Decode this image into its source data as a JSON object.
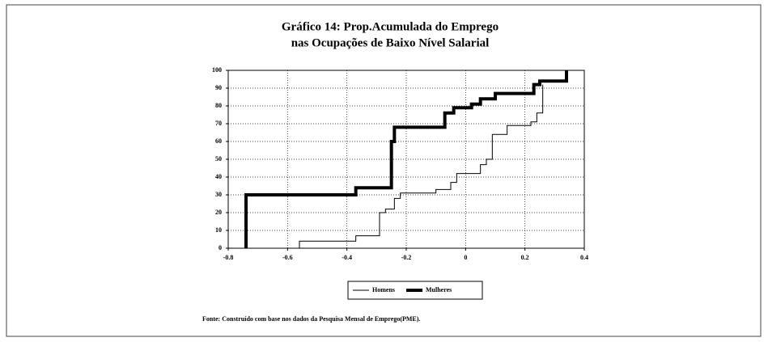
{
  "chart_data": {
    "type": "line",
    "title": [
      "Gráfico 14: Prop.Acumulada do Emprego",
      "nas Ocupações de Baixo Nível Salarial"
    ],
    "source": "Fonte: Construído com base nos dados da Pesquisa Mensal de Emprego(PME).",
    "xlim": [
      -0.8,
      0.4
    ],
    "ylim": [
      0,
      100
    ],
    "xticks": [
      -0.8,
      -0.6,
      -0.4,
      -0.2,
      0,
      0.2,
      0.4
    ],
    "yticks": [
      0,
      10,
      20,
      30,
      40,
      50,
      60,
      70,
      80,
      90,
      100
    ],
    "grid": true,
    "legend": "bottom",
    "series": [
      {
        "name": "Homens",
        "color": "#000000",
        "width": 1,
        "x": [
          -0.56,
          -0.56,
          -0.37,
          -0.37,
          -0.29,
          -0.29,
          -0.27,
          -0.27,
          -0.24,
          -0.24,
          -0.22,
          -0.22,
          -0.1,
          -0.1,
          -0.05,
          -0.05,
          -0.03,
          -0.03,
          0.05,
          0.05,
          0.07,
          0.07,
          0.09,
          0.09,
          0.14,
          0.14,
          0.22,
          0.22,
          0.24,
          0.24,
          0.26,
          0.26
        ],
        "values": [
          0,
          4,
          4,
          7,
          7,
          20,
          20,
          22,
          22,
          28,
          28,
          31,
          31,
          33,
          33,
          37,
          37,
          42,
          42,
          47,
          47,
          50,
          50,
          64,
          64,
          69,
          69,
          71,
          71,
          76,
          76,
          92
        ]
      },
      {
        "name": "Mulheres",
        "color": "#000000",
        "width": 4,
        "x": [
          -0.74,
          -0.74,
          -0.37,
          -0.37,
          -0.25,
          -0.25,
          -0.24,
          -0.24,
          -0.07,
          -0.07,
          -0.04,
          -0.04,
          0.02,
          0.02,
          0.05,
          0.05,
          0.1,
          0.1,
          0.23,
          0.23,
          0.25,
          0.25,
          0.34,
          0.34
        ],
        "values": [
          0,
          30,
          30,
          34,
          34,
          60,
          60,
          68,
          68,
          76,
          76,
          79,
          79,
          81,
          81,
          84,
          84,
          87,
          87,
          92,
          92,
          94,
          94,
          100
        ]
      }
    ]
  }
}
